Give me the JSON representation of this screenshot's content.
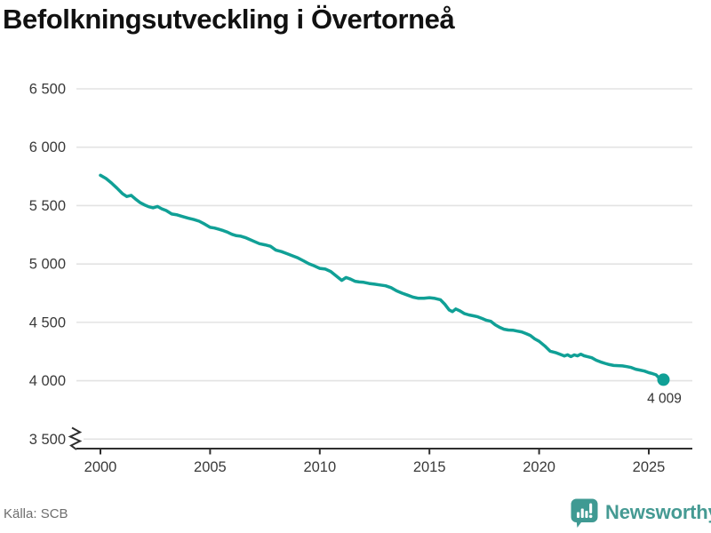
{
  "title": "Befolkningsutveckling i Övertorneå",
  "footer": {
    "source": "Källa: SCB",
    "brand": "Newsworthy"
  },
  "colors": {
    "line": "#10a096",
    "logo": "#3f9a93",
    "grid": "#e3e3e3",
    "axis": "#2e2e2e",
    "tick_text": "#3a3a3a",
    "label_text": "#333333",
    "muted": "#6e6e6e",
    "title": "#111111"
  },
  "chart_data": {
    "type": "line",
    "title": "Befolkningsutveckling i Övertorneå",
    "xlabel": "",
    "ylabel": "",
    "ylim": [
      3500,
      6500
    ],
    "y_axis_break": true,
    "grid": "horizontal",
    "legend": "none",
    "yticks": [
      {
        "label": "6 500",
        "value": 6500
      },
      {
        "label": "6 000",
        "value": 6000
      },
      {
        "label": "5 500",
        "value": 5500
      },
      {
        "label": "5 000",
        "value": 5000
      },
      {
        "label": "4 500",
        "value": 4500
      },
      {
        "label": "4 000",
        "value": 4000
      },
      {
        "label": "3 500",
        "value": 3500
      }
    ],
    "xticks": [
      {
        "label": "2000",
        "value": 2000
      },
      {
        "label": "2005",
        "value": 2005
      },
      {
        "label": "2010",
        "value": 2010
      },
      {
        "label": "2015",
        "value": 2015
      },
      {
        "label": "2020",
        "value": 2020
      },
      {
        "label": "2025",
        "value": 2025
      }
    ],
    "series": [
      {
        "name": "Befolkning i Övertorneå",
        "color": "#10a096",
        "end_value": 4009,
        "end_value_label": "4 009",
        "points": [
          [
            2000.0,
            5760
          ],
          [
            2000.25,
            5732
          ],
          [
            2000.5,
            5694
          ],
          [
            2000.75,
            5650
          ],
          [
            2001.0,
            5603
          ],
          [
            2001.2,
            5578
          ],
          [
            2001.4,
            5588
          ],
          [
            2001.6,
            5556
          ],
          [
            2001.8,
            5527
          ],
          [
            2002.0,
            5506
          ],
          [
            2002.2,
            5490
          ],
          [
            2002.4,
            5481
          ],
          [
            2002.6,
            5493
          ],
          [
            2002.8,
            5472
          ],
          [
            2003.0,
            5458
          ],
          [
            2003.25,
            5428
          ],
          [
            2003.5,
            5420
          ],
          [
            2003.75,
            5406
          ],
          [
            2004.0,
            5392
          ],
          [
            2004.25,
            5381
          ],
          [
            2004.5,
            5366
          ],
          [
            2004.75,
            5342
          ],
          [
            2005.0,
            5314
          ],
          [
            2005.2,
            5308
          ],
          [
            2005.4,
            5297
          ],
          [
            2005.6,
            5286
          ],
          [
            2005.8,
            5272
          ],
          [
            2006.0,
            5254
          ],
          [
            2006.2,
            5242
          ],
          [
            2006.4,
            5238
          ],
          [
            2006.6,
            5226
          ],
          [
            2006.8,
            5210
          ],
          [
            2007.0,
            5194
          ],
          [
            2007.25,
            5174
          ],
          [
            2007.5,
            5164
          ],
          [
            2007.75,
            5152
          ],
          [
            2008.0,
            5118
          ],
          [
            2008.25,
            5106
          ],
          [
            2008.5,
            5089
          ],
          [
            2008.75,
            5070
          ],
          [
            2009.0,
            5052
          ],
          [
            2009.25,
            5028
          ],
          [
            2009.5,
            5002
          ],
          [
            2009.75,
            4984
          ],
          [
            2010.0,
            4962
          ],
          [
            2010.25,
            4956
          ],
          [
            2010.5,
            4936
          ],
          [
            2010.75,
            4898
          ],
          [
            2011.0,
            4860
          ],
          [
            2011.2,
            4884
          ],
          [
            2011.4,
            4870
          ],
          [
            2011.6,
            4852
          ],
          [
            2011.8,
            4846
          ],
          [
            2012.0,
            4843
          ],
          [
            2012.25,
            4833
          ],
          [
            2012.5,
            4827
          ],
          [
            2012.75,
            4820
          ],
          [
            2013.0,
            4813
          ],
          [
            2013.25,
            4797
          ],
          [
            2013.5,
            4770
          ],
          [
            2013.75,
            4750
          ],
          [
            2014.0,
            4733
          ],
          [
            2014.25,
            4716
          ],
          [
            2014.5,
            4706
          ],
          [
            2014.75,
            4707
          ],
          [
            2015.0,
            4711
          ],
          [
            2015.25,
            4705
          ],
          [
            2015.5,
            4694
          ],
          [
            2015.7,
            4655
          ],
          [
            2015.9,
            4606
          ],
          [
            2016.05,
            4592
          ],
          [
            2016.2,
            4615
          ],
          [
            2016.4,
            4597
          ],
          [
            2016.6,
            4574
          ],
          [
            2016.8,
            4564
          ],
          [
            2017.0,
            4556
          ],
          [
            2017.2,
            4548
          ],
          [
            2017.4,
            4533
          ],
          [
            2017.6,
            4517
          ],
          [
            2017.8,
            4509
          ],
          [
            2018.0,
            4479
          ],
          [
            2018.2,
            4457
          ],
          [
            2018.4,
            4441
          ],
          [
            2018.6,
            4434
          ],
          [
            2018.8,
            4433
          ],
          [
            2019.0,
            4425
          ],
          [
            2019.2,
            4418
          ],
          [
            2019.4,
            4404
          ],
          [
            2019.6,
            4388
          ],
          [
            2019.8,
            4358
          ],
          [
            2020.0,
            4338
          ],
          [
            2020.25,
            4299
          ],
          [
            2020.5,
            4253
          ],
          [
            2020.75,
            4241
          ],
          [
            2021.0,
            4223
          ],
          [
            2021.15,
            4212
          ],
          [
            2021.3,
            4222
          ],
          [
            2021.45,
            4207
          ],
          [
            2021.6,
            4221
          ],
          [
            2021.75,
            4213
          ],
          [
            2021.9,
            4227
          ],
          [
            2022.05,
            4214
          ],
          [
            2022.2,
            4207
          ],
          [
            2022.4,
            4197
          ],
          [
            2022.6,
            4176
          ],
          [
            2022.8,
            4161
          ],
          [
            2023.0,
            4149
          ],
          [
            2023.2,
            4138
          ],
          [
            2023.4,
            4131
          ],
          [
            2023.6,
            4129
          ],
          [
            2023.8,
            4127
          ],
          [
            2024.0,
            4121
          ],
          [
            2024.2,
            4113
          ],
          [
            2024.4,
            4099
          ],
          [
            2024.6,
            4091
          ],
          [
            2024.8,
            4083
          ],
          [
            2025.0,
            4069
          ],
          [
            2025.17,
            4061
          ],
          [
            2025.33,
            4051
          ],
          [
            2025.5,
            4019
          ],
          [
            2025.58,
            4001
          ],
          [
            2025.67,
            4009
          ]
        ]
      }
    ]
  }
}
